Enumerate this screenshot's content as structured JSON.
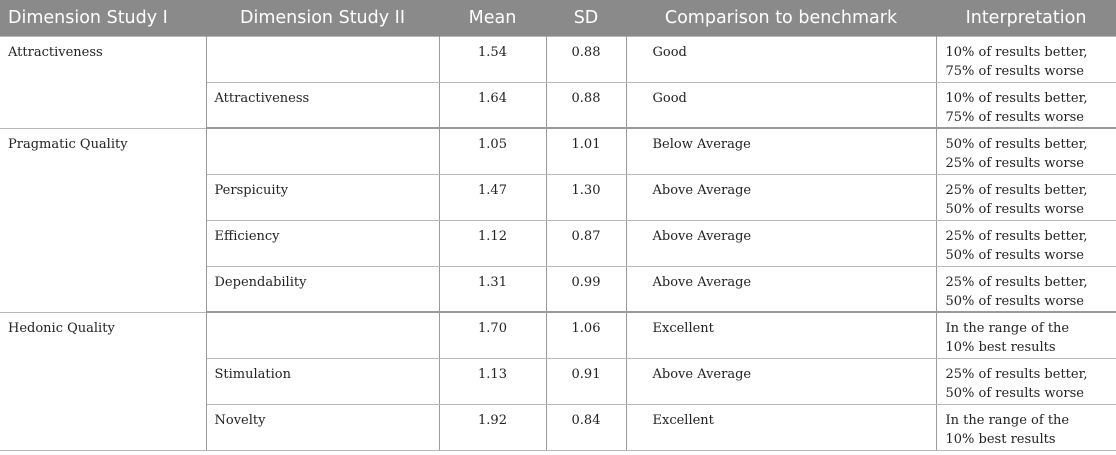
{
  "header": {
    "dim1": "Dimension Study I",
    "dim2": "Dimension Study II",
    "mean": "Mean",
    "sd": "SD",
    "comparison": "Comparison to benchmark",
    "interpretation": "Interpretation"
  },
  "groups": [
    {
      "name": "Attractiveness",
      "rows": [
        {
          "dim2": "",
          "mean": "1.54",
          "sd": "0.88",
          "comparison": "Good",
          "interp1": "10% of results better,",
          "interp2": "75% of results worse"
        },
        {
          "dim2": "Attractiveness",
          "mean": "1.64",
          "sd": "0.88",
          "comparison": "Good",
          "interp1": "10% of results better,",
          "interp2": "75% of results worse"
        }
      ]
    },
    {
      "name": "Pragmatic Quality",
      "rows": [
        {
          "dim2": "",
          "mean": "1.05",
          "sd": "1.01",
          "comparison": "Below Average",
          "interp1": "50% of results better,",
          "interp2": "25% of results worse"
        },
        {
          "dim2": "Perspicuity",
          "mean": "1.47",
          "sd": "1.30",
          "comparison": "Above Average",
          "interp1": "25% of results better,",
          "interp2": "50% of results worse"
        },
        {
          "dim2": "Efficiency",
          "mean": "1.12",
          "sd": "0.87",
          "comparison": "Above Average",
          "interp1": "25% of results better,",
          "interp2": "50% of results worse"
        },
        {
          "dim2": "Dependability",
          "mean": "1.31",
          "sd": "0.99",
          "comparison": "Above Average",
          "interp1": "25% of results better,",
          "interp2": "50% of results worse"
        }
      ]
    },
    {
      "name": "Hedonic Quality",
      "rows": [
        {
          "dim2": "",
          "mean": "1.70",
          "sd": "1.06",
          "comparison": "Excellent",
          "interp1": "In the range of the",
          "interp2": "10% best results"
        },
        {
          "dim2": "Stimulation",
          "mean": "1.13",
          "sd": "0.91",
          "comparison": "Above Average",
          "interp1": "25% of results better,",
          "interp2": "50% of results worse"
        },
        {
          "dim2": "Novelty",
          "mean": "1.92",
          "sd": "0.84",
          "comparison": "Excellent",
          "interp1": "In the range of the",
          "interp2": "10% best results"
        }
      ]
    }
  ]
}
